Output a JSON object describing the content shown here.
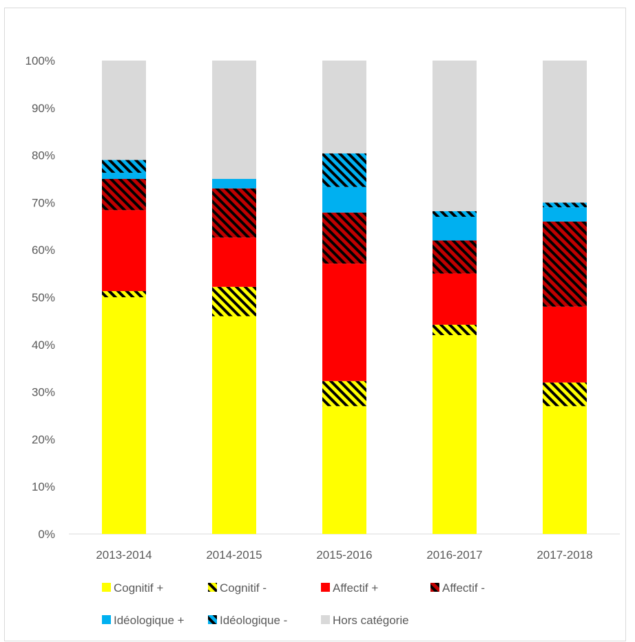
{
  "chart_data": {
    "type": "bar",
    "stacked": true,
    "percent": true,
    "title": "",
    "xlabel": "",
    "ylabel": "",
    "ylim": [
      0,
      100
    ],
    "yticks": [
      "0%",
      "10%",
      "20%",
      "30%",
      "40%",
      "50%",
      "60%",
      "70%",
      "80%",
      "90%",
      "100%"
    ],
    "grid": false,
    "legend_position": "bottom",
    "categories": [
      "2013-2014",
      "2014-2015",
      "2015-2016",
      "2016-2017",
      "2017-2018"
    ],
    "series": [
      {
        "name": "Cognitif +",
        "color": "#ffff00",
        "pattern": "solid",
        "values": [
          50,
          46,
          27,
          42,
          27
        ]
      },
      {
        "name": "Cognitif -",
        "color": "#ffff00",
        "pattern": "hatched",
        "values": [
          1.3,
          6.2,
          5.3,
          2.2,
          5
        ]
      },
      {
        "name": "Affectif +",
        "color": "#ff0000",
        "pattern": "solid",
        "values": [
          17.1,
          10.4,
          24.8,
          10.8,
          16
        ]
      },
      {
        "name": "Affectif -",
        "color": "#c00000",
        "pattern": "hatched",
        "values": [
          6.6,
          10.4,
          10.8,
          7,
          18
        ]
      },
      {
        "name": "Idéologique +",
        "color": "#00b0f0",
        "pattern": "solid",
        "values": [
          1.3,
          2,
          5.4,
          5,
          3
        ]
      },
      {
        "name": "Idéologique -",
        "color": "#00b0f0",
        "pattern": "hatched",
        "values": [
          2.7,
          0,
          7.1,
          1.2,
          1
        ]
      },
      {
        "name": "Hors catégorie",
        "color": "#d9d9d9",
        "pattern": "solid",
        "values": [
          21,
          25,
          19.6,
          31.8,
          30
        ]
      }
    ]
  }
}
